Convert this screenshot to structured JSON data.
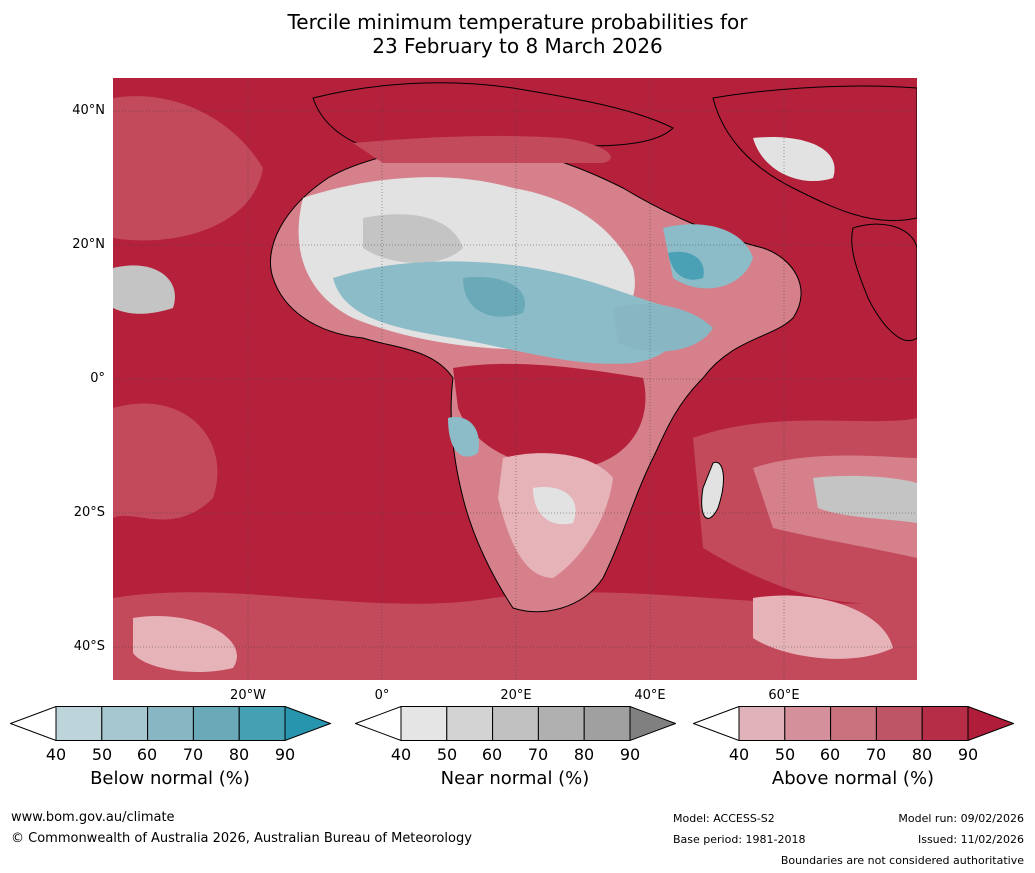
{
  "title": {
    "line1": "Tercile minimum temperature probabilities for",
    "line2": "23 February to 8 March 2026"
  },
  "map": {
    "lat_labels": [
      "40°N",
      "20°N",
      "0°",
      "20°S",
      "40°S"
    ],
    "lon_labels": [
      "20°W",
      "0°",
      "20°E",
      "40°E",
      "60°E"
    ],
    "colors": {
      "ocean_above": "#b5203a",
      "above_80": "#c24a5b",
      "above_60": "#d6808b",
      "above_40": "#e6b3b9",
      "near": "#e2e2e2",
      "near_grey": "#c4c4c4",
      "below": "#8cbcc8",
      "below_dark": "#4aa0b4",
      "coast": "#000000",
      "borders": "#888888"
    }
  },
  "legend": {
    "ticks": [
      "40",
      "50",
      "60",
      "70",
      "80",
      "90"
    ],
    "below": {
      "label": "Below normal (%)",
      "colors": [
        "#ffffff",
        "#bcd4da",
        "#a6c7cf",
        "#88b7c3",
        "#6aa9b7",
        "#46a0b4",
        "#2795ae"
      ]
    },
    "near": {
      "label": "Near normal (%)",
      "colors": [
        "#ffffff",
        "#e5e5e5",
        "#d3d3d3",
        "#c1c1c1",
        "#b0b0b0",
        "#a0a0a0",
        "#808080"
      ]
    },
    "above": {
      "label": "Above normal (%)",
      "colors": [
        "#ffffff",
        "#e0b3ba",
        "#d4919b",
        "#c8727e",
        "#bd5566",
        "#b52d46",
        "#b01d3a"
      ]
    }
  },
  "footer": {
    "url": "www.bom.gov.au/climate",
    "copyright": "© Commonwealth of Australia 2026, Australian Bureau of Meteorology",
    "model": "Model: ACCESS-S2",
    "base_period": "Base period: 1981-2018",
    "model_run": "Model run: 09/02/2026",
    "issued": "Issued: 11/02/2026",
    "disclaimer": "Boundaries are not considered authoritative"
  }
}
